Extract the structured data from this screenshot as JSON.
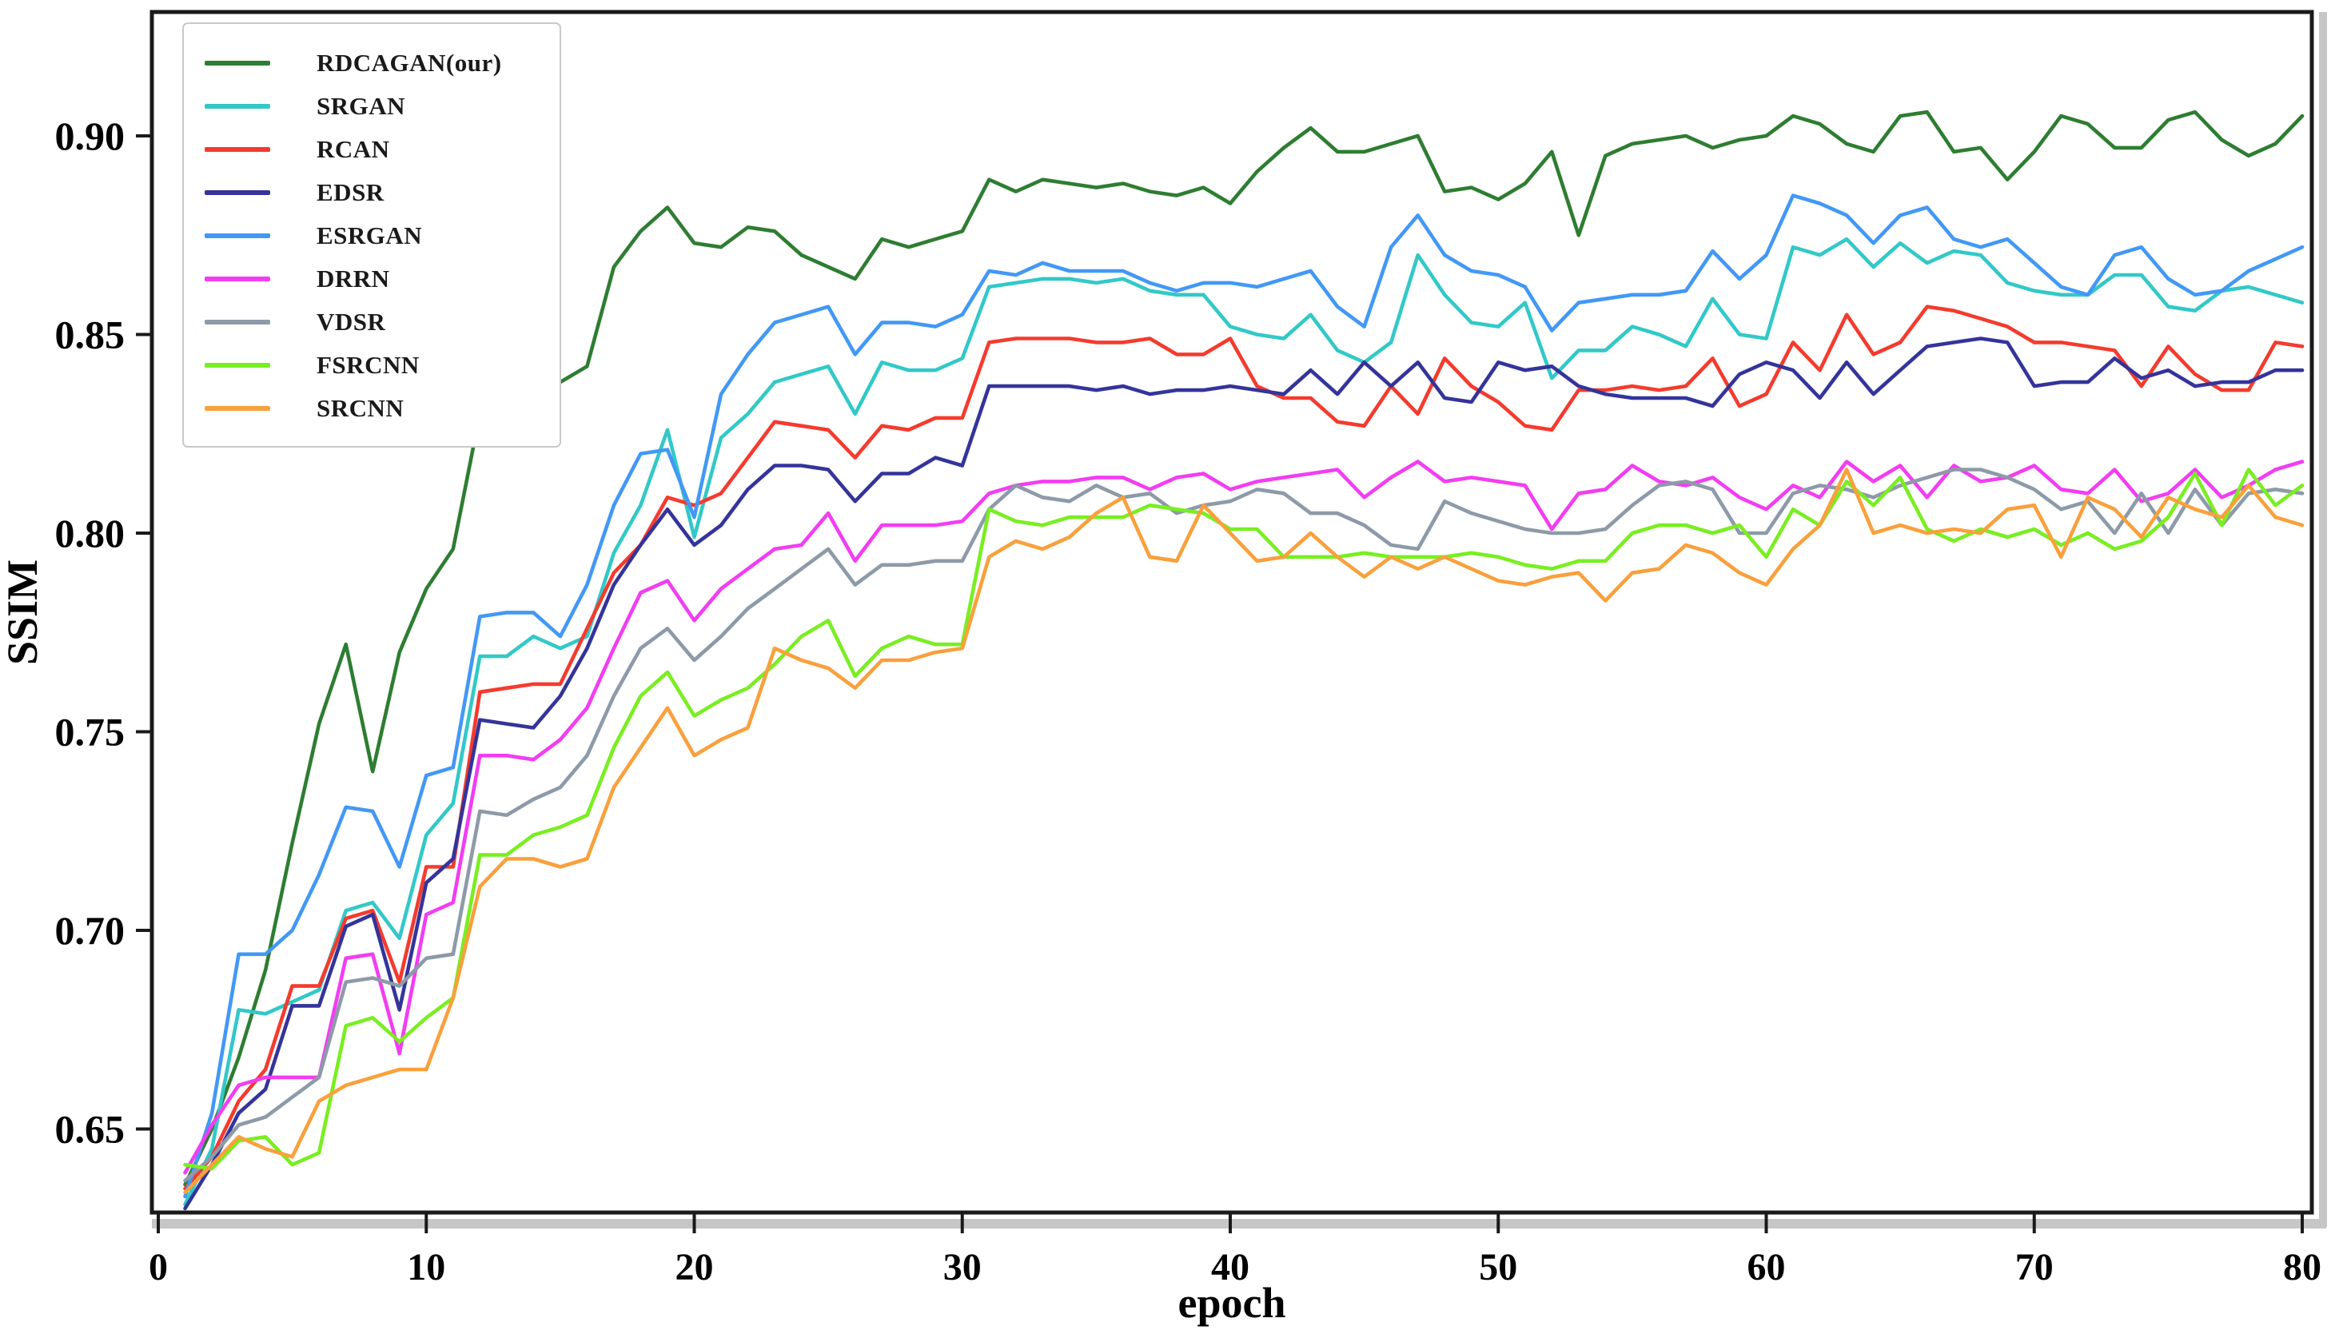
{
  "chart_data": {
    "type": "line",
    "title": "",
    "xlabel": "epoch",
    "ylabel": "SSIM",
    "xlim": [
      0,
      81.7
    ],
    "ylim": [
      0.629,
      0.931
    ],
    "grid": false,
    "legend_position": "upper-left",
    "xticks": [
      0,
      10,
      20,
      30,
      40,
      50,
      60,
      70,
      80
    ],
    "yticks": [
      "0.90",
      "0.85",
      "0.80",
      "0.75",
      "0.70",
      "0.65"
    ],
    "ytick_values": [
      0.9,
      0.85,
      0.8,
      0.75,
      0.7,
      0.65
    ],
    "x": [
      1,
      2,
      3,
      4,
      5,
      6,
      7,
      8,
      9,
      10,
      11,
      12,
      13,
      14,
      15,
      16,
      17,
      18,
      19,
      20,
      21,
      22,
      23,
      24,
      25,
      26,
      27,
      28,
      29,
      30,
      31,
      32,
      33,
      34,
      35,
      36,
      37,
      38,
      39,
      40,
      41,
      42,
      43,
      44,
      45,
      46,
      47,
      48,
      49,
      50,
      51,
      52,
      53,
      54,
      55,
      56,
      57,
      58,
      59,
      60,
      61,
      62,
      63,
      64,
      65,
      66,
      67,
      68,
      69,
      70,
      71,
      72,
      73,
      74,
      75,
      76,
      77,
      78,
      79,
      80
    ],
    "series": [
      {
        "name": "RDCAGAN(our)",
        "color": "#2e7d32",
        "values": [
          0.636,
          0.65,
          0.668,
          0.69,
          0.722,
          0.752,
          0.772,
          0.74,
          0.77,
          0.786,
          0.796,
          0.83,
          0.835,
          0.837,
          0.838,
          0.842,
          0.867,
          0.876,
          0.882,
          0.873,
          0.872,
          0.877,
          0.876,
          0.87,
          0.867,
          0.864,
          0.874,
          0.872,
          0.874,
          0.876,
          0.889,
          0.886,
          0.889,
          0.888,
          0.887,
          0.888,
          0.886,
          0.885,
          0.887,
          0.883,
          0.891,
          0.897,
          0.902,
          0.896,
          0.896,
          0.898,
          0.9,
          0.886,
          0.887,
          0.884,
          0.888,
          0.896,
          0.875,
          0.895,
          0.898,
          0.899,
          0.9,
          0.897,
          0.899,
          0.9,
          0.905,
          0.903,
          0.898,
          0.896,
          0.905,
          0.906,
          0.896,
          0.897,
          0.889,
          0.896,
          0.905,
          0.903,
          0.897,
          0.897,
          0.904,
          0.906,
          0.899,
          0.895,
          0.898,
          0.905
        ]
      },
      {
        "name": "SRGAN",
        "color": "#32c8c8",
        "values": [
          0.631,
          0.645,
          0.68,
          0.679,
          0.682,
          0.685,
          0.705,
          0.707,
          0.698,
          0.724,
          0.732,
          0.769,
          0.769,
          0.774,
          0.771,
          0.774,
          0.795,
          0.807,
          0.826,
          0.799,
          0.824,
          0.83,
          0.838,
          0.84,
          0.842,
          0.83,
          0.843,
          0.841,
          0.841,
          0.844,
          0.862,
          0.863,
          0.864,
          0.864,
          0.863,
          0.864,
          0.861,
          0.86,
          0.86,
          0.852,
          0.85,
          0.849,
          0.855,
          0.846,
          0.843,
          0.848,
          0.87,
          0.86,
          0.853,
          0.852,
          0.858,
          0.839,
          0.846,
          0.846,
          0.852,
          0.85,
          0.847,
          0.859,
          0.85,
          0.849,
          0.872,
          0.87,
          0.874,
          0.867,
          0.873,
          0.868,
          0.871,
          0.87,
          0.863,
          0.861,
          0.86,
          0.86,
          0.865,
          0.865,
          0.857,
          0.856,
          0.861,
          0.862,
          0.86,
          0.858
        ]
      },
      {
        "name": "RCAN",
        "color": "#f43b2e",
        "values": [
          0.635,
          0.643,
          0.657,
          0.665,
          0.686,
          0.686,
          0.703,
          0.705,
          0.687,
          0.716,
          0.716,
          0.76,
          0.761,
          0.762,
          0.762,
          0.776,
          0.79,
          0.797,
          0.809,
          0.807,
          0.81,
          0.819,
          0.828,
          0.827,
          0.826,
          0.819,
          0.827,
          0.826,
          0.829,
          0.829,
          0.848,
          0.849,
          0.849,
          0.849,
          0.848,
          0.848,
          0.849,
          0.845,
          0.845,
          0.849,
          0.837,
          0.834,
          0.834,
          0.828,
          0.827,
          0.837,
          0.83,
          0.844,
          0.837,
          0.833,
          0.827,
          0.826,
          0.836,
          0.836,
          0.837,
          0.836,
          0.837,
          0.844,
          0.832,
          0.835,
          0.848,
          0.841,
          0.855,
          0.845,
          0.848,
          0.857,
          0.856,
          0.854,
          0.852,
          0.848,
          0.848,
          0.847,
          0.846,
          0.837,
          0.847,
          0.84,
          0.836,
          0.836,
          0.848,
          0.847
        ]
      },
      {
        "name": "EDSR",
        "color": "#34349b",
        "values": [
          0.63,
          0.641,
          0.654,
          0.66,
          0.681,
          0.681,
          0.701,
          0.704,
          0.68,
          0.712,
          0.718,
          0.753,
          0.752,
          0.751,
          0.759,
          0.771,
          0.787,
          0.797,
          0.806,
          0.797,
          0.802,
          0.811,
          0.817,
          0.817,
          0.816,
          0.808,
          0.815,
          0.815,
          0.819,
          0.817,
          0.837,
          0.837,
          0.837,
          0.837,
          0.836,
          0.837,
          0.835,
          0.836,
          0.836,
          0.837,
          0.836,
          0.835,
          0.841,
          0.835,
          0.843,
          0.837,
          0.843,
          0.834,
          0.833,
          0.843,
          0.841,
          0.842,
          0.837,
          0.835,
          0.834,
          0.834,
          0.834,
          0.832,
          0.84,
          0.843,
          0.841,
          0.834,
          0.843,
          0.835,
          0.841,
          0.847,
          0.848,
          0.849,
          0.848,
          0.837,
          0.838,
          0.838,
          0.844,
          0.839,
          0.841,
          0.837,
          0.838,
          0.838,
          0.841,
          0.841
        ]
      },
      {
        "name": "ESRGAN",
        "color": "#4298f5",
        "values": [
          0.633,
          0.654,
          0.694,
          0.694,
          0.7,
          0.714,
          0.731,
          0.73,
          0.716,
          0.739,
          0.741,
          0.779,
          0.78,
          0.78,
          0.774,
          0.787,
          0.807,
          0.82,
          0.821,
          0.804,
          0.835,
          0.845,
          0.853,
          0.855,
          0.857,
          0.845,
          0.853,
          0.853,
          0.852,
          0.855,
          0.866,
          0.865,
          0.868,
          0.866,
          0.866,
          0.866,
          0.863,
          0.861,
          0.863,
          0.863,
          0.862,
          0.864,
          0.866,
          0.857,
          0.852,
          0.872,
          0.88,
          0.87,
          0.866,
          0.865,
          0.862,
          0.851,
          0.858,
          0.859,
          0.86,
          0.86,
          0.861,
          0.871,
          0.864,
          0.87,
          0.885,
          0.883,
          0.88,
          0.873,
          0.88,
          0.882,
          0.874,
          0.872,
          0.874,
          0.868,
          0.862,
          0.86,
          0.87,
          0.872,
          0.864,
          0.86,
          0.861,
          0.866,
          0.869,
          0.872
        ]
      },
      {
        "name": "DRRN",
        "color": "#f23df2",
        "values": [
          0.639,
          0.651,
          0.661,
          0.663,
          0.663,
          0.663,
          0.693,
          0.694,
          0.669,
          0.704,
          0.707,
          0.744,
          0.744,
          0.743,
          0.748,
          0.756,
          0.771,
          0.785,
          0.788,
          0.778,
          0.786,
          0.791,
          0.796,
          0.797,
          0.805,
          0.793,
          0.802,
          0.802,
          0.802,
          0.803,
          0.81,
          0.812,
          0.813,
          0.813,
          0.814,
          0.814,
          0.811,
          0.814,
          0.815,
          0.811,
          0.813,
          0.814,
          0.815,
          0.816,
          0.809,
          0.814,
          0.818,
          0.813,
          0.814,
          0.813,
          0.812,
          0.801,
          0.81,
          0.811,
          0.817,
          0.813,
          0.812,
          0.814,
          0.809,
          0.806,
          0.812,
          0.809,
          0.818,
          0.813,
          0.817,
          0.809,
          0.817,
          0.813,
          0.814,
          0.817,
          0.811,
          0.81,
          0.816,
          0.808,
          0.81,
          0.816,
          0.809,
          0.812,
          0.816,
          0.818
        ]
      },
      {
        "name": "VDSR",
        "color": "#8d9aa8",
        "values": [
          0.637,
          0.643,
          0.651,
          0.653,
          0.658,
          0.663,
          0.687,
          0.688,
          0.686,
          0.693,
          0.694,
          0.73,
          0.729,
          0.733,
          0.736,
          0.744,
          0.759,
          0.771,
          0.776,
          0.768,
          0.774,
          0.781,
          0.786,
          0.791,
          0.796,
          0.787,
          0.792,
          0.792,
          0.793,
          0.793,
          0.806,
          0.812,
          0.809,
          0.808,
          0.812,
          0.809,
          0.81,
          0.805,
          0.807,
          0.808,
          0.811,
          0.81,
          0.805,
          0.805,
          0.802,
          0.797,
          0.796,
          0.808,
          0.805,
          0.803,
          0.801,
          0.8,
          0.8,
          0.801,
          0.807,
          0.812,
          0.813,
          0.811,
          0.8,
          0.8,
          0.81,
          0.812,
          0.811,
          0.809,
          0.812,
          0.814,
          0.816,
          0.816,
          0.814,
          0.811,
          0.806,
          0.808,
          0.8,
          0.81,
          0.8,
          0.811,
          0.802,
          0.81,
          0.811,
          0.81
        ]
      },
      {
        "name": "FSRCNN",
        "color": "#79ee21",
        "values": [
          0.641,
          0.64,
          0.647,
          0.648,
          0.641,
          0.644,
          0.676,
          0.678,
          0.672,
          0.678,
          0.683,
          0.719,
          0.719,
          0.724,
          0.726,
          0.729,
          0.746,
          0.759,
          0.765,
          0.754,
          0.758,
          0.761,
          0.767,
          0.774,
          0.778,
          0.764,
          0.771,
          0.774,
          0.772,
          0.772,
          0.806,
          0.803,
          0.802,
          0.804,
          0.804,
          0.804,
          0.807,
          0.806,
          0.805,
          0.801,
          0.801,
          0.794,
          0.794,
          0.794,
          0.795,
          0.794,
          0.794,
          0.794,
          0.795,
          0.794,
          0.792,
          0.791,
          0.793,
          0.793,
          0.8,
          0.802,
          0.802,
          0.8,
          0.802,
          0.794,
          0.806,
          0.802,
          0.813,
          0.807,
          0.814,
          0.801,
          0.798,
          0.801,
          0.799,
          0.801,
          0.797,
          0.8,
          0.796,
          0.798,
          0.804,
          0.815,
          0.802,
          0.816,
          0.807,
          0.812
        ]
      },
      {
        "name": "SRCNN",
        "color": "#f9a03c",
        "values": [
          0.634,
          0.641,
          0.648,
          0.645,
          0.643,
          0.657,
          0.661,
          0.663,
          0.665,
          0.665,
          0.683,
          0.711,
          0.718,
          0.718,
          0.716,
          0.718,
          0.736,
          0.746,
          0.756,
          0.744,
          0.748,
          0.751,
          0.771,
          0.768,
          0.766,
          0.761,
          0.768,
          0.768,
          0.77,
          0.771,
          0.794,
          0.798,
          0.796,
          0.799,
          0.805,
          0.809,
          0.794,
          0.793,
          0.807,
          0.8,
          0.793,
          0.794,
          0.8,
          0.794,
          0.789,
          0.794,
          0.791,
          0.794,
          0.791,
          0.788,
          0.787,
          0.789,
          0.79,
          0.783,
          0.79,
          0.791,
          0.797,
          0.795,
          0.79,
          0.787,
          0.796,
          0.802,
          0.816,
          0.8,
          0.802,
          0.8,
          0.801,
          0.8,
          0.806,
          0.807,
          0.794,
          0.809,
          0.806,
          0.799,
          0.809,
          0.806,
          0.804,
          0.812,
          0.804,
          0.802
        ]
      }
    ]
  }
}
